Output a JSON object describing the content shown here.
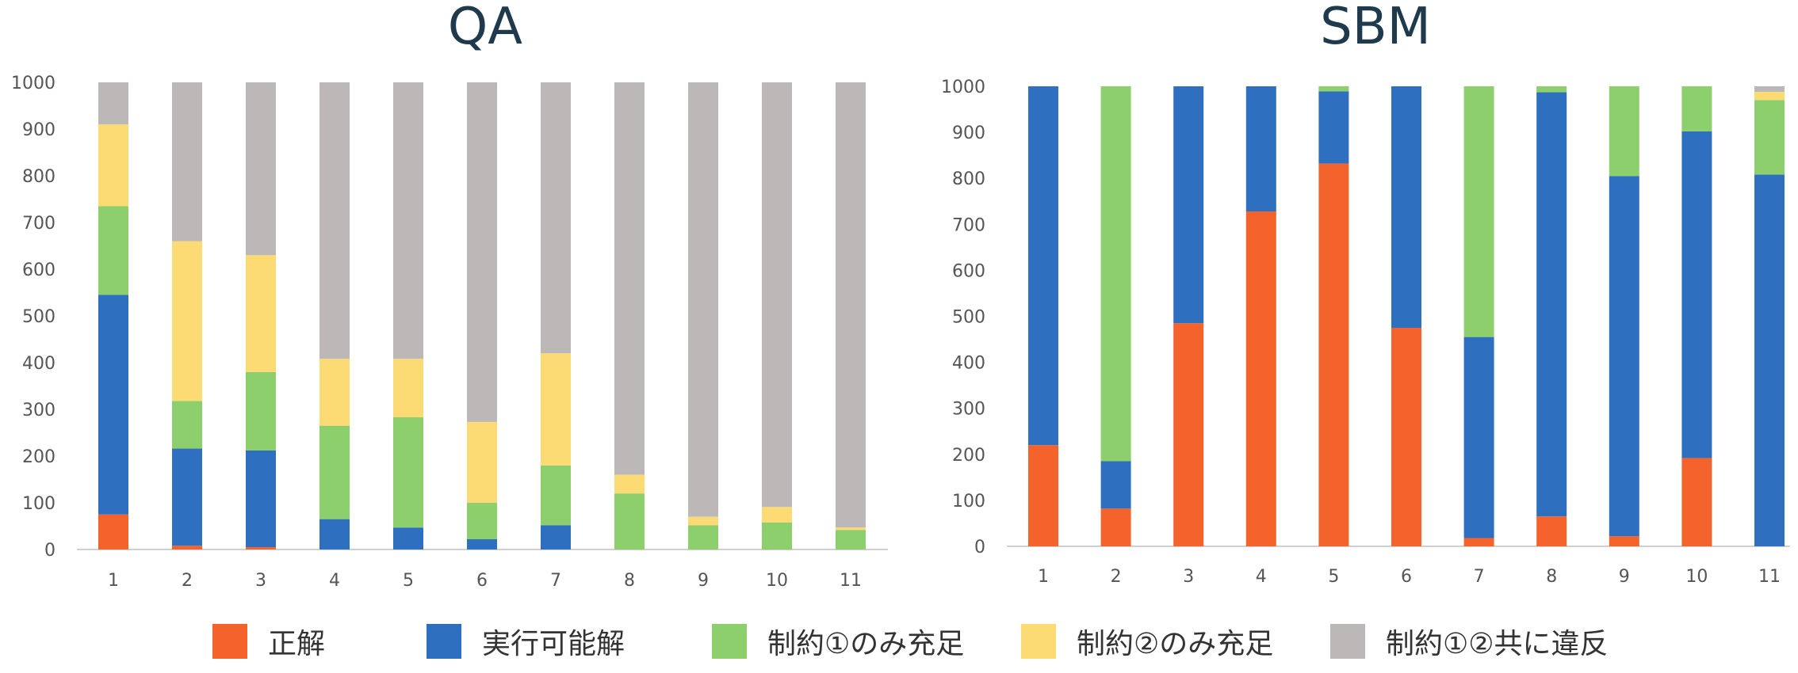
{
  "series": [
    {
      "name": "正解",
      "color": "#f4632c"
    },
    {
      "name": "実行可能解",
      "color": "#2f6fc0"
    },
    {
      "name": "制約①のみ充足",
      "color": "#8ccf6c"
    },
    {
      "name": "制約②のみ充足",
      "color": "#fcdb74"
    },
    {
      "name": "制約①②共に違反",
      "color": "#bdb8b8"
    }
  ],
  "chart_data": [
    {
      "type": "bar",
      "stacked": true,
      "title": "QA",
      "categories": [
        "1",
        "2",
        "3",
        "4",
        "5",
        "6",
        "7",
        "8",
        "9",
        "10",
        "11"
      ],
      "ylim": [
        0,
        1000
      ],
      "yticks": [
        0,
        100,
        200,
        300,
        400,
        500,
        600,
        700,
        800,
        900,
        1000
      ],
      "series": [
        {
          "name": "正解",
          "values": [
            75,
            8,
            5,
            0,
            0,
            0,
            0,
            0,
            0,
            0,
            0
          ]
        },
        {
          "name": "実行可能解",
          "values": [
            470,
            208,
            207,
            65,
            47,
            22,
            52,
            0,
            0,
            0,
            0
          ]
        },
        {
          "name": "制約①のみ充足",
          "values": [
            190,
            102,
            168,
            200,
            236,
            78,
            128,
            120,
            52,
            58,
            42
          ]
        },
        {
          "name": "制約②のみ充足",
          "values": [
            175,
            342,
            250,
            143,
            125,
            173,
            240,
            40,
            18,
            33,
            5
          ]
        },
        {
          "name": "制約①②共に違反",
          "values": [
            90,
            340,
            370,
            592,
            592,
            727,
            580,
            840,
            930,
            909,
            953
          ]
        }
      ]
    },
    {
      "type": "bar",
      "stacked": true,
      "title": "SBM",
      "categories": [
        "1",
        "2",
        "3",
        "4",
        "5",
        "6",
        "7",
        "8",
        "9",
        "10",
        "11"
      ],
      "ylim": [
        0,
        1000
      ],
      "yticks": [
        0,
        100,
        200,
        300,
        400,
        500,
        600,
        700,
        800,
        900,
        1000
      ],
      "series": [
        {
          "name": "正解",
          "values": [
            220,
            82,
            485,
            728,
            832,
            475,
            18,
            65,
            22,
            192,
            0
          ]
        },
        {
          "name": "実行可能解",
          "values": [
            780,
            103,
            515,
            272,
            157,
            525,
            437,
            922,
            783,
            710,
            808
          ]
        },
        {
          "name": "制約①のみ充足",
          "values": [
            0,
            815,
            0,
            0,
            11,
            0,
            545,
            13,
            195,
            98,
            162
          ]
        },
        {
          "name": "制約②のみ充足",
          "values": [
            0,
            0,
            0,
            0,
            0,
            0,
            0,
            0,
            0,
            0,
            18
          ]
        },
        {
          "name": "制約①②共に違反",
          "values": [
            0,
            0,
            0,
            0,
            0,
            0,
            0,
            0,
            0,
            0,
            12
          ]
        }
      ]
    }
  ]
}
